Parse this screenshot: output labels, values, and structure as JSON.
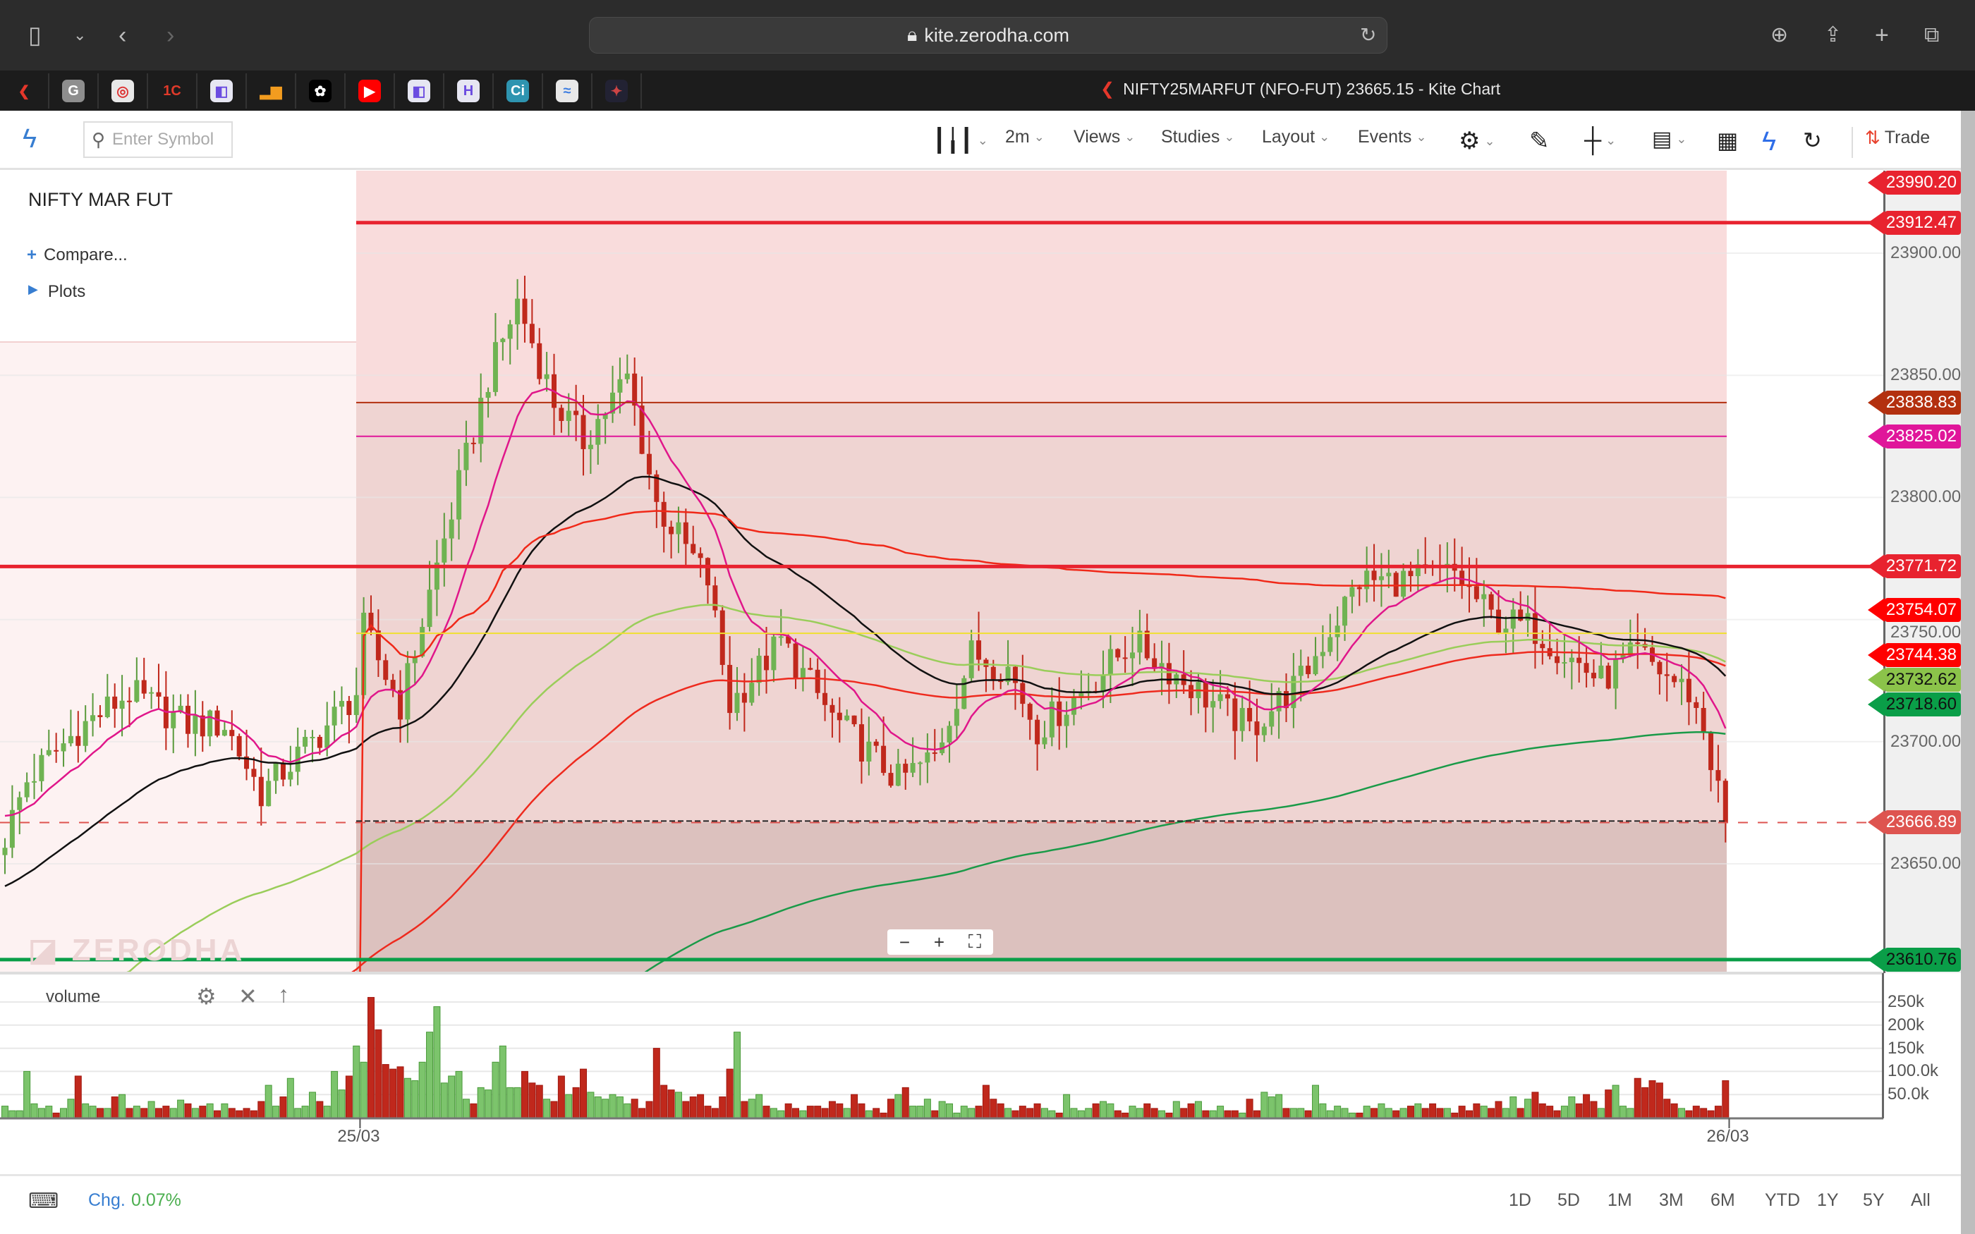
{
  "browser": {
    "url": "kite.zerodha.com",
    "tab_title": "NIFTY25MARFUT (NFO-FUT) 23665.15 - Kite Chart",
    "bookmarks": [
      {
        "name": "kite",
        "glyph": "❮",
        "color": "#e5372b",
        "bg": "transparent"
      },
      {
        "name": "google",
        "glyph": "G",
        "color": "#fff",
        "bg": "#8e8e8e"
      },
      {
        "name": "swing",
        "glyph": "◎",
        "color": "#d33",
        "bg": "#e8e8e8"
      },
      {
        "name": "1c",
        "glyph": "1C",
        "color": "#e03a2a",
        "bg": "transparent"
      },
      {
        "name": "app-purple",
        "glyph": "◧",
        "color": "#6a4be0",
        "bg": "#e6e6f2"
      },
      {
        "name": "analytics",
        "glyph": "▂▆",
        "color": "#f29c1f",
        "bg": "transparent"
      },
      {
        "name": "openai",
        "glyph": "✿",
        "color": "#fff",
        "bg": "#000"
      },
      {
        "name": "youtube",
        "glyph": "▶",
        "color": "#fff",
        "bg": "#f00"
      },
      {
        "name": "app-purple-2",
        "glyph": "◧",
        "color": "#6a4be0",
        "bg": "#e6e6f2"
      },
      {
        "name": "h-app",
        "glyph": "H",
        "color": "#6a4be0",
        "bg": "#e6e6f2"
      },
      {
        "name": "ci",
        "glyph": "Ci",
        "color": "#fff",
        "bg": "#2e94b0"
      },
      {
        "name": "wave",
        "glyph": "≈",
        "color": "#3a7be0",
        "bg": "#e8e8e8"
      },
      {
        "name": "game",
        "glyph": "✦",
        "color": "#c44",
        "bg": "#223"
      }
    ]
  },
  "toolbar": {
    "search_placeholder": "Enter Symbol",
    "interval": "2m",
    "views": "Views",
    "studies": "Studies",
    "layout": "Layout",
    "events": "Events",
    "trade": "Trade"
  },
  "legend": {
    "symbol": "NIFTY MAR FUT",
    "compare": "Compare...",
    "plots": "Plots"
  },
  "volume_panel": {
    "label": "volume"
  },
  "zoom_controls": {
    "minus": "−",
    "plus": "+"
  },
  "bottom": {
    "chg_label": "Chg.",
    "chg_value": "0.07%",
    "ranges": [
      "1D",
      "5D",
      "1M",
      "3M",
      "6M",
      "YTD",
      "1Y",
      "5Y",
      "All"
    ]
  },
  "colors": {
    "up": "#7cc46c",
    "down": "#c0281c",
    "accent": "#387ed1"
  },
  "chart_data": {
    "type": "candlestick",
    "x_ticks": [
      {
        "label": "25/03",
        "bar": 48.5
      },
      {
        "label": "26/03",
        "bar": 235.5
      }
    ],
    "y_ticks": [
      "23900.00",
      "23850.00",
      "23800.00",
      "23750.00",
      "23700.00",
      "23650.00"
    ],
    "y_tick_values": [
      23900,
      23850,
      23800,
      23750,
      23700,
      23650
    ],
    "ylim": [
      23590,
      23975
    ],
    "close_path": [
      [
        0,
        23661
      ],
      [
        3,
        23684
      ],
      [
        10,
        23705
      ],
      [
        17,
        23720
      ],
      [
        25,
        23707
      ],
      [
        30,
        23707
      ],
      [
        35,
        23679
      ],
      [
        42,
        23700
      ],
      [
        48,
        23720
      ],
      [
        49,
        23746
      ],
      [
        54,
        23715
      ],
      [
        59,
        23772
      ],
      [
        66,
        23849
      ],
      [
        70,
        23880
      ],
      [
        75,
        23839
      ],
      [
        79,
        23823
      ],
      [
        85,
        23849
      ],
      [
        89,
        23797
      ],
      [
        96,
        23766
      ],
      [
        99,
        23715
      ],
      [
        106,
        23741
      ],
      [
        113,
        23710
      ],
      [
        122,
        23684
      ],
      [
        127,
        23694
      ],
      [
        132,
        23736
      ],
      [
        137,
        23730
      ],
      [
        141,
        23705
      ],
      [
        147,
        23720
      ],
      [
        154,
        23741
      ],
      [
        161,
        23725
      ],
      [
        170,
        23705
      ],
      [
        177,
        23725
      ],
      [
        182,
        23751
      ],
      [
        185,
        23766
      ],
      [
        192,
        23766
      ],
      [
        198,
        23769
      ],
      [
        203,
        23751
      ],
      [
        209,
        23746
      ],
      [
        213,
        23736
      ],
      [
        218,
        23725
      ],
      [
        223,
        23736
      ],
      [
        230,
        23720
      ],
      [
        232,
        23705
      ],
      [
        235,
        23667
      ]
    ],
    "volume_k": [
      25,
      15,
      15,
      100,
      30,
      20,
      25,
      10,
      20,
      40,
      90,
      30,
      25,
      20,
      20,
      45,
      50,
      20,
      25,
      20,
      35,
      20,
      25,
      20,
      38,
      30,
      20,
      25,
      30,
      15,
      30,
      20,
      15,
      20,
      15,
      35,
      70,
      25,
      45,
      85,
      20,
      25,
      55,
      35,
      25,
      100,
      60,
      90,
      155,
      120,
      260,
      190,
      115,
      105,
      110,
      85,
      80,
      120,
      185,
      240,
      75,
      90,
      100,
      40,
      30,
      65,
      60,
      120,
      155,
      65,
      65,
      100,
      75,
      70,
      40,
      35,
      90,
      50,
      65,
      105,
      55,
      45,
      40,
      50,
      45,
      30,
      40,
      20,
      35,
      150,
      70,
      60,
      55,
      35,
      45,
      50,
      25,
      20,
      45,
      105,
      185,
      35,
      40,
      50,
      25,
      20,
      15,
      30,
      20,
      15,
      25,
      25,
      20,
      35,
      30,
      20,
      50,
      30,
      15,
      20,
      10,
      40,
      50,
      65,
      25,
      25,
      40,
      15,
      35,
      30,
      10,
      25,
      20,
      25,
      70,
      40,
      30,
      20,
      15,
      25,
      20,
      30,
      20,
      15,
      10,
      50,
      20,
      15,
      20,
      30,
      35,
      30,
      15,
      10,
      25,
      20,
      30,
      20,
      15,
      10,
      35,
      20,
      30,
      35,
      15,
      15,
      25,
      15,
      15,
      10,
      40,
      15,
      55,
      45,
      50,
      20,
      20,
      20,
      15,
      70,
      30,
      15,
      25,
      20,
      10,
      10,
      25,
      20,
      30,
      20,
      15,
      20,
      25,
      30,
      20,
      30,
      20,
      20,
      10,
      25,
      15,
      30,
      25,
      20,
      35,
      20,
      45,
      20,
      40,
      55,
      30,
      25,
      15,
      25,
      45,
      30,
      50,
      35,
      20,
      60,
      70,
      25,
      20,
      85,
      65,
      80,
      75,
      40,
      30,
      20,
      15,
      25,
      20,
      15,
      25,
      80
    ],
    "volume_ticks": [
      "250k",
      "200k",
      "150k",
      "100.0k",
      "50.0k"
    ],
    "volume_tick_values": [
      250,
      200,
      150,
      100,
      50
    ],
    "price_labels": [
      {
        "value": "23990.20",
        "price": 23990.2,
        "color": "#e8232f",
        "line": false
      },
      {
        "value": "23912.47",
        "price": 23912.47,
        "color": "#e8232f",
        "line": "thick"
      },
      {
        "value": "23838.83",
        "price": 23838.83,
        "color": "#b3300f",
        "line": "thin"
      },
      {
        "value": "23825.02",
        "price": 23825.02,
        "color": "#e0169a",
        "line": "thin"
      },
      {
        "value": "23771.72",
        "price": 23771.72,
        "color": "#e8232f",
        "line": "thick"
      },
      {
        "value": "23754.07",
        "price": 23754.07,
        "color": "#ff0000",
        "line": false
      },
      {
        "value": "23744.38",
        "price": 23744.38,
        "color": "#ff0000",
        "line": false
      },
      {
        "value": "23732.62",
        "price": 23732.62,
        "color": "#8bc34a",
        "line": false,
        "dark": true
      },
      {
        "value": "23718.60",
        "price": 23718.6,
        "color": "#0a9e48",
        "line": false,
        "dark": true
      },
      {
        "value": "23666.89",
        "price": 23666.89,
        "color": "#de5450",
        "line": "dashed"
      },
      {
        "value": "23610.76",
        "price": 23610.76,
        "color": "#0a9e48",
        "line": "thick",
        "dark": true
      }
    ]
  }
}
